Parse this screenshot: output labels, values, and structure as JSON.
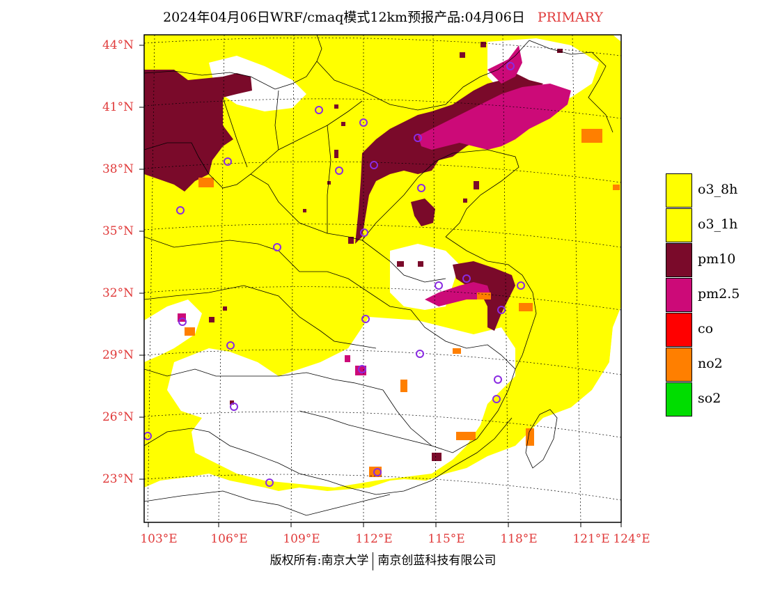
{
  "header": {
    "title": "2024年04月06日WRF/cmaq模式12km预报产品:04月06日",
    "tag": "PRIMARY"
  },
  "axes": {
    "lat_labels": [
      "44°N",
      "41°N",
      "38°N",
      "35°N",
      "32°N",
      "29°N",
      "26°N",
      "23°N"
    ],
    "lon_labels": [
      "103°E",
      "106°E",
      "109°E",
      "112°E",
      "115°E",
      "118°E",
      "121°E",
      "124°E"
    ]
  },
  "legend": [
    {
      "label": "o3_8h",
      "color": "#ffff00"
    },
    {
      "label": "o3_1h",
      "color": "#ffff00"
    },
    {
      "label": "pm10",
      "color": "#7a0a2a"
    },
    {
      "label": "pm2.5",
      "color": "#cc0a78"
    },
    {
      "label": "co",
      "color": "#ff0000"
    },
    {
      "label": "no2",
      "color": "#ff7f00"
    },
    {
      "label": "so2",
      "color": "#00dd00"
    }
  ],
  "footer": {
    "left": "版权所有:南京大学",
    "right": "南京创蓝科技有限公司"
  },
  "colors": {
    "o3": "#ffff00",
    "pm10": "#7a0a2a",
    "pm25": "#cc0a78",
    "no2": "#ff7f00",
    "site": "#8a2be2",
    "label": "#e03a3a"
  },
  "map": {
    "type": "primary-pollutant",
    "lat_range": [
      21,
      44.5
    ],
    "lon_range": [
      102.7,
      124
    ]
  }
}
